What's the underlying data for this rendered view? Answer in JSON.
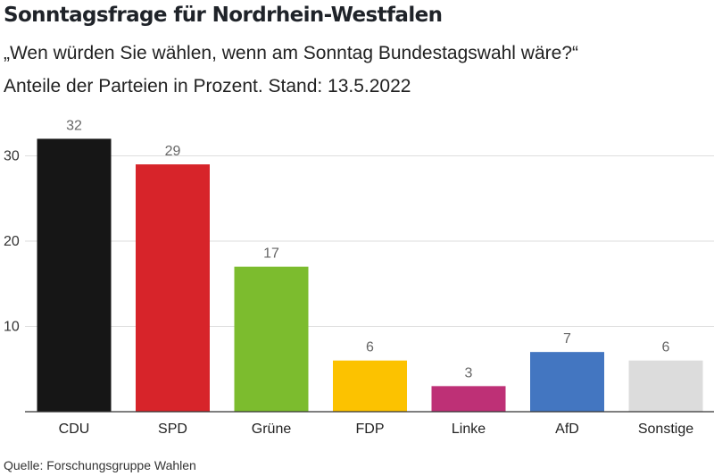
{
  "header": {
    "title": "Sonntagsfrage für Nordrhein-Westfalen",
    "subtitle_line1": "„Wen würden Sie wählen, wenn am Sonntag Bundestagswahl wäre?“",
    "subtitle_line2": "Anteile der Parteien in Prozent. Stand: 13.5.2022"
  },
  "footer": {
    "source": "Quelle: Forschungsgruppe Wahlen"
  },
  "chart_data": {
    "type": "bar",
    "categories": [
      "CDU",
      "SPD",
      "Grüne",
      "FDP",
      "Linke",
      "AfD",
      "Sonstige"
    ],
    "values": [
      32,
      29,
      17,
      6,
      3,
      7,
      6
    ],
    "colors": [
      "#161616",
      "#d7242a",
      "#7cbc2e",
      "#fcc200",
      "#be3076",
      "#4376c1",
      "#dcdcdc"
    ],
    "y_ticks": [
      10,
      20,
      30
    ],
    "ylim": [
      0,
      34
    ],
    "grid": true,
    "data_labels": true,
    "title": "Sonntagsfrage für Nordrhein-Westfalen",
    "xlabel": "",
    "ylabel": ""
  }
}
